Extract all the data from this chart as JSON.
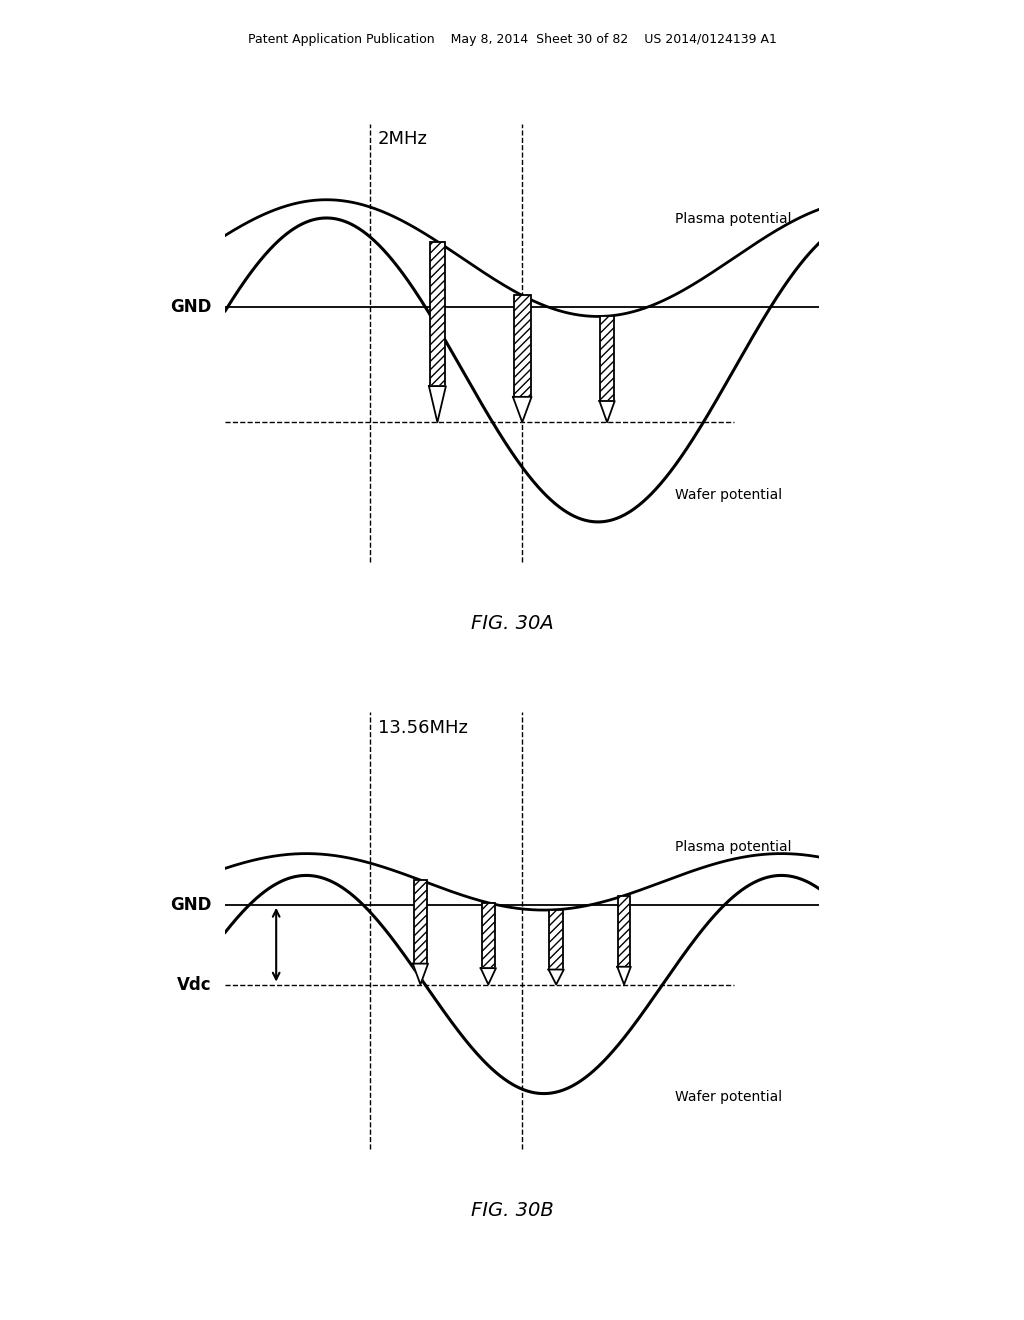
{
  "bg_color": "#ffffff",
  "text_color": "#000000",
  "header_text": "Patent Application Publication    May 8, 2014  Sheet 30 of 82    US 2014/0124139 A1",
  "fig30a_title": "2MHz",
  "fig30b_title": "13.56MHz",
  "caption_a": "FIG. 30A",
  "caption_b": "FIG. 30B",
  "plasma_label": "Plasma potential",
  "wafer_label_a": "Wafer potential",
  "wafer_label_b": "Wafer potential",
  "gnd_label": "GND",
  "vdc_label": "Vdc"
}
